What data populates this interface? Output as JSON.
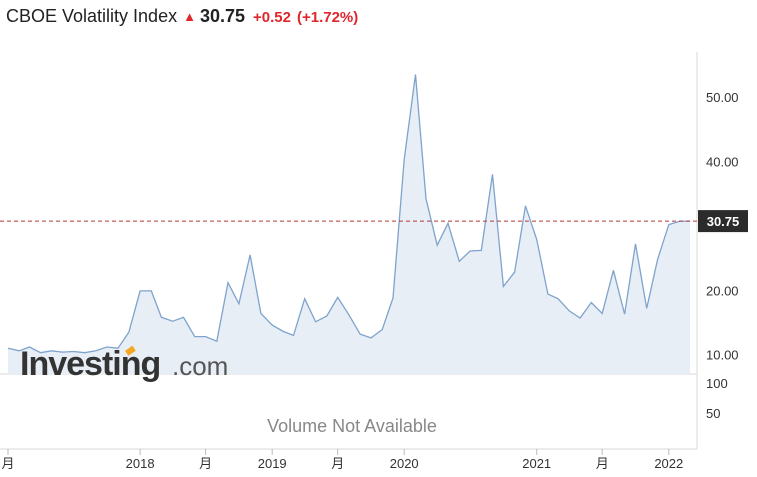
{
  "header": {
    "name": "CBOE Volatility Index",
    "last": "30.75",
    "change": "+0.52",
    "change_pct": "(+1.72%)",
    "direction": "up",
    "up_color": "#e0262b"
  },
  "watermark": {
    "brand": "Investing",
    "suffix": ".com"
  },
  "volume": {
    "message": "Volume Not Available",
    "ticks": [
      "100",
      "50"
    ]
  },
  "chart_data": {
    "type": "area",
    "title": "CBOE Volatility Index",
    "xlabel": "",
    "ylabel": "",
    "ylim": [
      7,
      57
    ],
    "grid": false,
    "line_color": "#7ea3cc",
    "fill_color": "#e8eef6",
    "last_value": 30.75,
    "y_ticks": [
      "10.00",
      "20.00",
      "30.00",
      "40.00",
      "50.00"
    ],
    "x_ticks": [
      {
        "label": "月",
        "date": "2017-01-01"
      },
      {
        "label": "2018",
        "date": "2018-01-01"
      },
      {
        "label": "月",
        "date": "2018-07-01"
      },
      {
        "label": "2019",
        "date": "2019-01-01"
      },
      {
        "label": "月",
        "date": "2019-07-01"
      },
      {
        "label": "2020",
        "date": "2020-01-01"
      },
      {
        "label": "2021",
        "date": "2021-01-01"
      },
      {
        "label": "月",
        "date": "2021-07-01"
      },
      {
        "label": "2022",
        "date": "2022-01-01"
      }
    ],
    "series": [
      {
        "x": [
          "2017-01-01",
          "2017-02-01",
          "2017-03-01",
          "2017-04-01",
          "2017-05-01",
          "2017-06-01",
          "2017-07-01",
          "2017-08-01",
          "2017-09-01",
          "2017-10-01",
          "2017-11-01",
          "2017-12-01",
          "2018-01-01",
          "2018-02-01",
          "2018-03-01",
          "2018-04-01",
          "2018-05-01",
          "2018-06-01",
          "2018-07-01",
          "2018-08-01",
          "2018-09-01",
          "2018-10-01",
          "2018-11-01",
          "2018-12-01",
          "2019-01-01",
          "2019-02-01",
          "2019-03-01",
          "2019-04-01",
          "2019-05-01",
          "2019-06-01",
          "2019-07-01",
          "2019-08-01",
          "2019-09-01",
          "2019-10-01",
          "2019-11-01",
          "2019-12-01",
          "2020-01-01",
          "2020-02-01",
          "2020-03-01",
          "2020-04-01",
          "2020-05-01",
          "2020-06-01",
          "2020-07-01",
          "2020-08-01",
          "2020-09-01",
          "2020-10-01",
          "2020-11-01",
          "2020-12-01",
          "2021-01-01",
          "2021-02-01",
          "2021-03-01",
          "2021-04-01",
          "2021-05-01",
          "2021-06-01",
          "2021-07-01",
          "2021-08-01",
          "2021-09-01",
          "2021-10-01",
          "2021-11-01",
          "2021-12-01",
          "2022-01-01",
          "2022-02-01",
          "2022-03-01"
        ],
        "values": [
          11.0,
          10.6,
          11.2,
          10.3,
          10.6,
          10.4,
          10.5,
          10.3,
          10.6,
          11.2,
          11.0,
          13.5,
          19.9,
          19.9,
          15.8,
          15.2,
          15.8,
          12.8,
          12.8,
          12.1,
          21.2,
          17.9,
          25.5,
          16.4,
          14.6,
          13.6,
          13.0,
          18.7,
          15.1,
          16.0,
          18.9,
          16.2,
          13.2,
          12.6,
          13.9,
          18.8,
          40.3,
          53.5,
          34.2,
          27.0,
          30.4,
          24.5,
          26.1,
          26.2,
          38.0,
          20.6,
          22.8,
          33.1,
          27.9,
          19.4,
          18.7,
          16.8,
          15.7,
          18.1,
          16.4,
          23.1,
          16.3,
          27.2,
          17.2,
          24.8,
          30.2,
          30.75,
          30.75
        ]
      }
    ]
  }
}
